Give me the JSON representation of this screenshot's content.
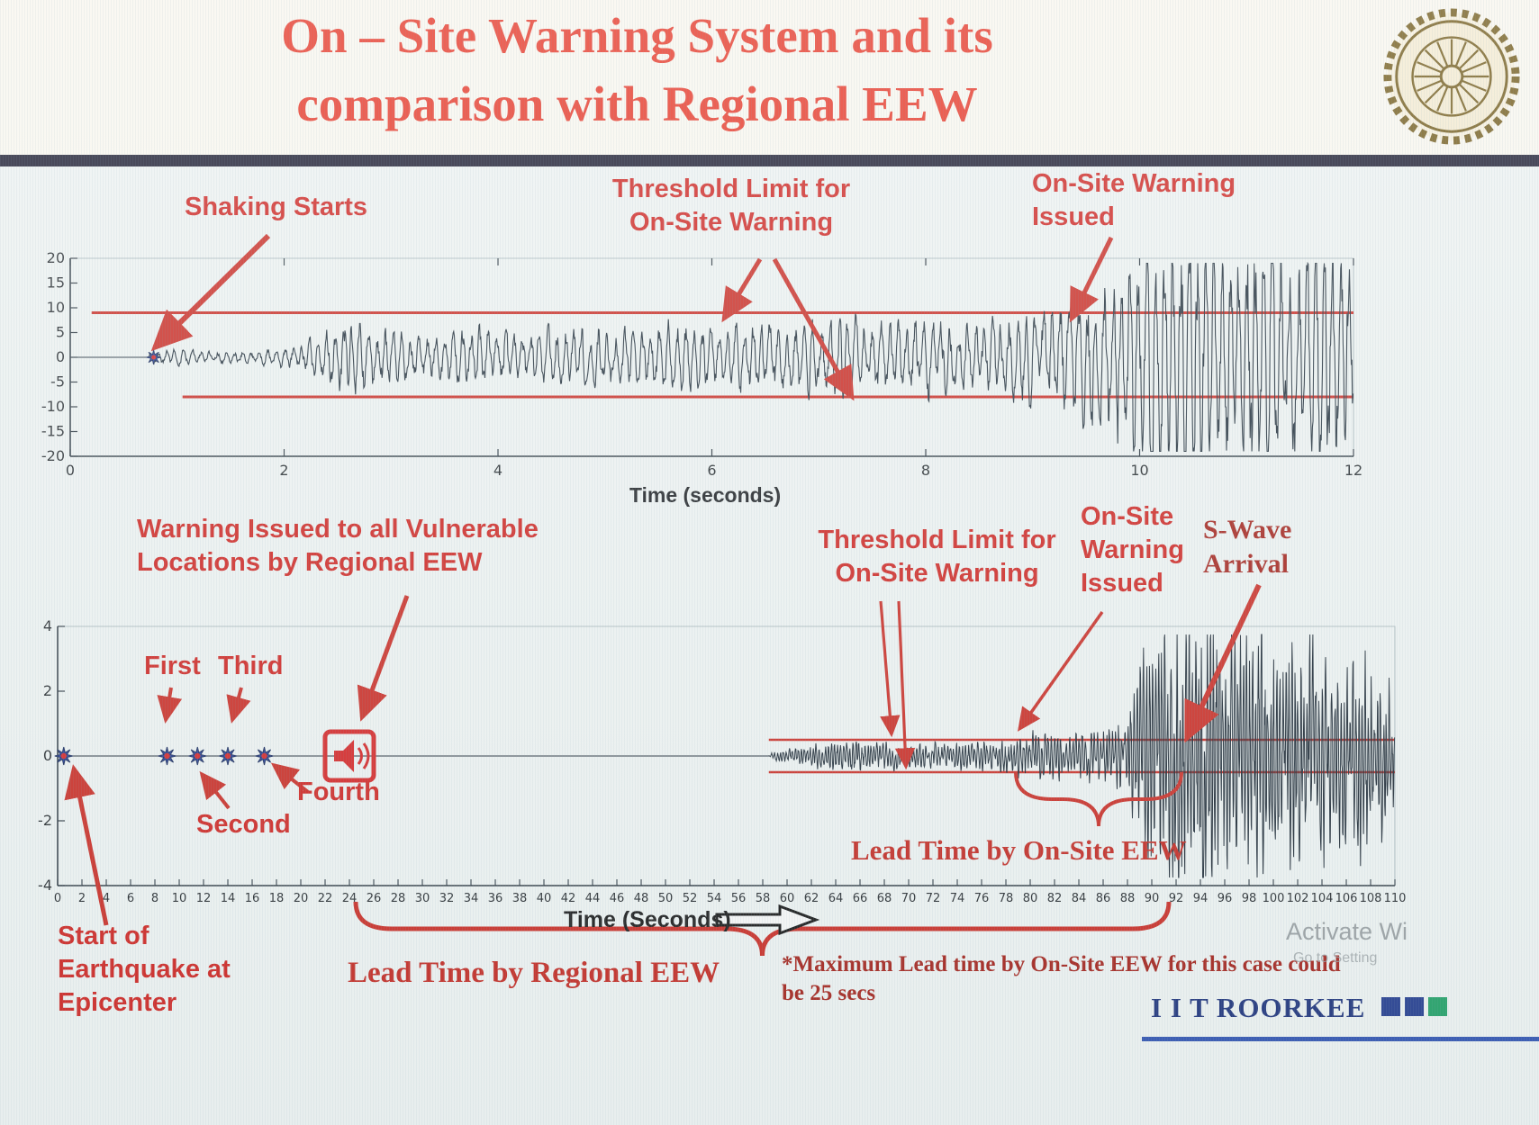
{
  "slide": {
    "title_line1": "On – Site Warning System and its",
    "title_line2": "comparison with Regional EEW"
  },
  "colors": {
    "title_red": "#e63020",
    "annotation_red": "#ce1f1b",
    "dark_serif_red": "#a21d15",
    "threshold_red": "#c9271f",
    "waveform": "#1c2a36",
    "star_blue": "#1e3a9c",
    "brand_navy": "#1a2f78"
  },
  "chart_data": [
    {
      "type": "line",
      "title": "",
      "xlabel": "Time (seconds)",
      "ylabel": "",
      "xlim": [
        0,
        12
      ],
      "ylim": [
        -20,
        20
      ],
      "xticks": [
        0,
        2,
        4,
        6,
        8,
        10,
        12
      ],
      "yticks": [
        20,
        15,
        10,
        5,
        0,
        -5,
        -10,
        -15,
        -20
      ],
      "grid": false,
      "threshold_upper": 9,
      "threshold_lower": -8,
      "threshold_upper_start_t": 0.2,
      "threshold_lower_start_t": 1.05,
      "shaking_start_t": 0.78,
      "onsite_warning_issued_t": 9.3,
      "envelope": [
        [
          0,
          0
        ],
        [
          0.72,
          0
        ],
        [
          0.78,
          0.9
        ],
        [
          1.0,
          0.9
        ],
        [
          1.3,
          0.7
        ],
        [
          1.6,
          0.8
        ],
        [
          1.9,
          1.0
        ],
        [
          2.2,
          1.6
        ],
        [
          2.4,
          3.2
        ],
        [
          2.6,
          4.5
        ],
        [
          2.8,
          3.8
        ],
        [
          3.0,
          3.0
        ],
        [
          3.3,
          2.6
        ],
        [
          3.6,
          3.0
        ],
        [
          3.9,
          3.4
        ],
        [
          4.2,
          2.8
        ],
        [
          4.5,
          3.2
        ],
        [
          4.8,
          3.8
        ],
        [
          5.1,
          3.2
        ],
        [
          5.4,
          3.6
        ],
        [
          5.7,
          4.2
        ],
        [
          6.0,
          3.6
        ],
        [
          6.3,
          4.4
        ],
        [
          6.6,
          3.8
        ],
        [
          6.9,
          4.2
        ],
        [
          7.2,
          4.8
        ],
        [
          7.5,
          4.0
        ],
        [
          7.8,
          4.4
        ],
        [
          8.1,
          5.0
        ],
        [
          8.4,
          3.8
        ],
        [
          8.7,
          4.6
        ],
        [
          9.0,
          5.5
        ],
        [
          9.2,
          6.5
        ],
        [
          9.4,
          8.0
        ],
        [
          9.6,
          10
        ],
        [
          9.8,
          12
        ],
        [
          10.0,
          14
        ],
        [
          10.2,
          16
        ],
        [
          10.4,
          15
        ],
        [
          10.6,
          16.5
        ],
        [
          10.8,
          13
        ],
        [
          11.0,
          15
        ],
        [
          11.2,
          16
        ],
        [
          11.4,
          13
        ],
        [
          11.6,
          15
        ],
        [
          11.8,
          14
        ],
        [
          12,
          13
        ]
      ]
    },
    {
      "type": "line",
      "title": "",
      "xlabel": "Time (Seconds)",
      "ylabel": "",
      "xlim": [
        0,
        110
      ],
      "ylim": [
        -4,
        4
      ],
      "xtick_step": 2,
      "yticks": [
        4,
        2,
        0,
        -2,
        -4
      ],
      "grid": false,
      "threshold_upper": 0.5,
      "threshold_lower": -0.5,
      "threshold_start_t": 58.5,
      "p_wave_detections": [
        {
          "label": "Start of Earthquake at Epicenter",
          "t": 0.5
        },
        {
          "label": "First",
          "t": 9
        },
        {
          "label": "Second",
          "t": 11.5
        },
        {
          "label": "Third",
          "t": 14
        },
        {
          "label": "Fourth",
          "t": 17
        }
      ],
      "regional_warning_t": 24,
      "onsite_warning_issued_t": 80,
      "s_wave_arrival_t": 93,
      "lead_time_onsite_span_t": [
        79,
        92.5
      ],
      "lead_time_regional_span_t": [
        24,
        92
      ],
      "envelope": [
        [
          0,
          0
        ],
        [
          58.5,
          0
        ],
        [
          59,
          0.12
        ],
        [
          61,
          0.2
        ],
        [
          64,
          0.3
        ],
        [
          67,
          0.33
        ],
        [
          70,
          0.3
        ],
        [
          73,
          0.28
        ],
        [
          76,
          0.33
        ],
        [
          78,
          0.4
        ],
        [
          80,
          0.55
        ],
        [
          82,
          0.5
        ],
        [
          84,
          0.45
        ],
        [
          86,
          0.6
        ],
        [
          87.5,
          0.9
        ],
        [
          89,
          1.8
        ],
        [
          90.5,
          2.9
        ],
        [
          92,
          3.3
        ],
        [
          93.5,
          2.7
        ],
        [
          95,
          3.1
        ],
        [
          97,
          2.5
        ],
        [
          99,
          2.9
        ],
        [
          101,
          2.4
        ],
        [
          103,
          2.7
        ],
        [
          105,
          2.1
        ],
        [
          107,
          2.3
        ],
        [
          109,
          1.9
        ],
        [
          110,
          1.7
        ]
      ]
    }
  ],
  "annotations": {
    "shaking_starts": "Shaking Starts",
    "threshold_limit_top": "Threshold Limit for On-Site Warning",
    "onsite_warning_issued_top": "On-Site Warning Issued",
    "regional_warning": "Warning Issued to all Vulnerable Locations by Regional EEW",
    "threshold_limit_bottom": "Threshold Limit for On-Site Warning",
    "onsite_warning_issued_bottom": "On-Site Warning Issued",
    "s_wave_arrival": "S-Wave Arrival",
    "p_wave_first": "First",
    "p_wave_second": "Second",
    "p_wave_third": "Third",
    "p_wave_fourth": "Fourth",
    "start_of_earthquake": "Start of Earthquake at Epicenter",
    "lead_time_onsite": "Lead Time by On-Site EEW",
    "lead_time_regional": "Lead Time by Regional EEW",
    "max_lead_note": "*Maximum Lead time by On-Site EEW for this case could be 25 secs"
  },
  "footer": {
    "brand": "I I T ROORKEE",
    "activate_line1": "Activate Wi",
    "activate_line2": "Go to Setting"
  }
}
